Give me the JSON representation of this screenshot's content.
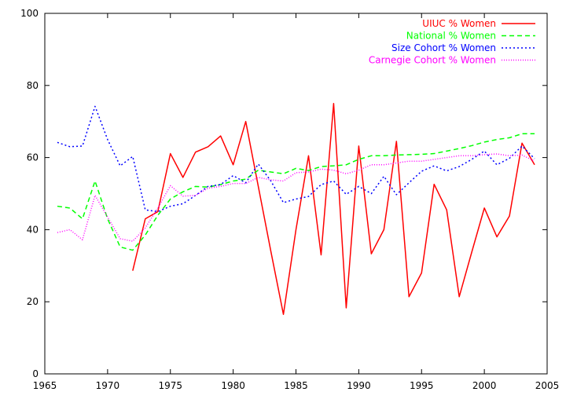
{
  "chart_data": {
    "type": "line",
    "title": "",
    "xlabel": "",
    "ylabel": "",
    "xlim": [
      1965,
      2005
    ],
    "ylim": [
      0,
      100
    ],
    "xticks": [
      1965,
      1970,
      1975,
      1980,
      1985,
      1990,
      1995,
      2000,
      2005
    ],
    "yticks": [
      0,
      20,
      40,
      60,
      80,
      100
    ],
    "xtick_labels": [
      "1965",
      "1970",
      "1975",
      "1980",
      "1985",
      "1990",
      "1995",
      "2000",
      "2005"
    ],
    "ytick_labels": [
      "0",
      "20",
      "40",
      "60",
      "80",
      "100"
    ],
    "grid": false,
    "legend_position": "top-right",
    "series": [
      {
        "name": "UIUC % Women",
        "color": "#ff0000",
        "dash": "solid",
        "x": [
          1972,
          1973,
          1974,
          1975,
          1976,
          1977,
          1978,
          1979,
          1980,
          1981,
          1982,
          1983,
          1984,
          1985,
          1986,
          1987,
          1988,
          1989,
          1990,
          1991,
          1992,
          1993,
          1994,
          1995,
          1996,
          1997,
          1998,
          1999,
          2000,
          2001,
          2002,
          2003,
          2004
        ],
        "y": [
          28.6,
          43,
          45,
          61.1,
          54.5,
          61.5,
          63,
          66,
          58,
          70,
          52,
          34,
          16.5,
          40,
          60.5,
          33,
          75,
          18.3,
          63.2,
          33.3,
          40,
          64.5,
          21.4,
          28,
          52.6,
          45.5,
          21.4,
          33.8,
          46,
          38,
          43.8,
          64,
          58
        ]
      },
      {
        "name": "National % Women",
        "color": "#00ff00",
        "dash": "dashed",
        "x": [
          1966,
          1967,
          1968,
          1969,
          1970,
          1971,
          1972,
          1973,
          1974,
          1975,
          1976,
          1977,
          1978,
          1979,
          1980,
          1981,
          1982,
          1983,
          1984,
          1985,
          1986,
          1987,
          1988,
          1989,
          1990,
          1991,
          1992,
          1993,
          1994,
          1995,
          1996,
          1997,
          1998,
          1999,
          2000,
          2001,
          2002,
          2003,
          2004
        ],
        "y": [
          46.5,
          46,
          43,
          53.5,
          43,
          35.2,
          34.3,
          38.5,
          44,
          48.5,
          50.5,
          52,
          51.8,
          52.5,
          53.5,
          54,
          56.5,
          56,
          55.5,
          57,
          56.4,
          57.5,
          57.7,
          58,
          59.5,
          60.5,
          60.5,
          60.7,
          60.8,
          60.9,
          61.1,
          61.8,
          62.5,
          63.3,
          64.3,
          65,
          65.5,
          66.6,
          66.6
        ]
      },
      {
        "name": "Size Cohort % Women",
        "color": "#0000ff",
        "dash": "dotted",
        "x": [
          1966,
          1967,
          1968,
          1969,
          1970,
          1971,
          1972,
          1973,
          1974,
          1975,
          1976,
          1977,
          1978,
          1979,
          1980,
          1981,
          1982,
          1983,
          1984,
          1985,
          1986,
          1987,
          1988,
          1989,
          1990,
          1991,
          1992,
          1993,
          1994,
          1995,
          1996,
          1997,
          1998,
          1999,
          2000,
          2001,
          2002,
          2003,
          2004
        ],
        "y": [
          64.2,
          63,
          63.2,
          74.2,
          65,
          57.7,
          60.3,
          45.5,
          45,
          46.5,
          47.2,
          49.5,
          52,
          52.5,
          55,
          53,
          58.2,
          53.5,
          47.5,
          48.5,
          49.2,
          52.5,
          53.5,
          49.8,
          52,
          50,
          54.8,
          49.7,
          53,
          56.2,
          57.7,
          56.3,
          57.5,
          59.5,
          61.8,
          58,
          59.8,
          63.2,
          59.7
        ]
      },
      {
        "name": "Carnegie Cohort % Women",
        "color": "#ff00ff",
        "dash": "dotted-fine",
        "x": [
          1966,
          1967,
          1968,
          1969,
          1970,
          1971,
          1972,
          1973,
          1974,
          1975,
          1976,
          1977,
          1978,
          1979,
          1980,
          1981,
          1982,
          1983,
          1984,
          1985,
          1986,
          1987,
          1988,
          1989,
          1990,
          1991,
          1992,
          1993,
          1994,
          1995,
          1996,
          1997,
          1998,
          1999,
          2000,
          2001,
          2002,
          2003,
          2004
        ],
        "y": [
          39.2,
          40,
          37.2,
          49.5,
          43.5,
          37.5,
          36.8,
          40.5,
          46,
          52.2,
          49.3,
          49.5,
          51.5,
          52,
          52.8,
          52.8,
          54.5,
          53.8,
          53.5,
          55.8,
          56,
          56.8,
          56.5,
          55.5,
          56.5,
          58,
          58,
          58.5,
          59,
          59,
          59.5,
          60,
          60.5,
          60.5,
          60.8,
          61,
          60.5,
          60.7,
          59
        ]
      }
    ]
  }
}
